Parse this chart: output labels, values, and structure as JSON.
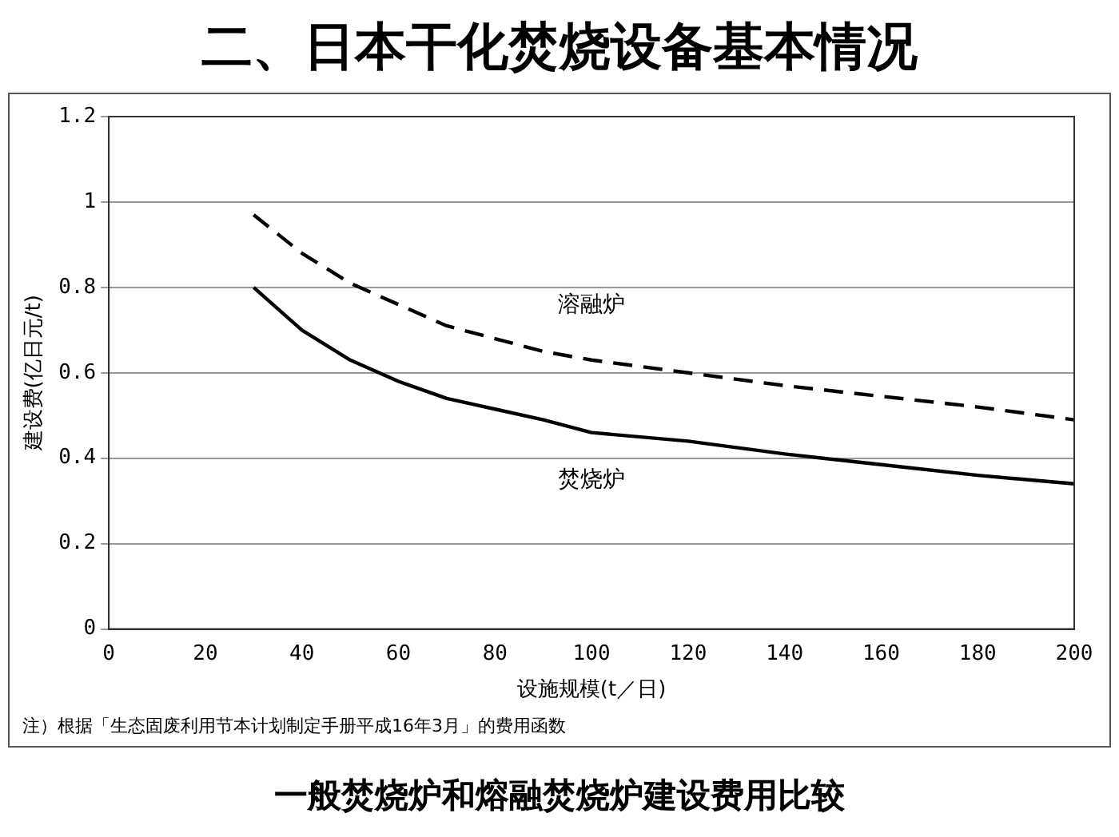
{
  "chart_data": {
    "type": "line",
    "title": "二、日本干化焚烧设备基本情况",
    "subtitle": "一般焚烧炉和熔融焚烧炉建设费用比较",
    "xlabel": "设施规模(t／日)",
    "ylabel": "建设费(亿日元/t)",
    "annotations": [
      "注）根据「生态固废利用节本计划制定手册平成16年3月」的费用函数"
    ],
    "xlim": [
      0,
      200
    ],
    "xticks": [
      0,
      20,
      40,
      60,
      80,
      100,
      120,
      140,
      160,
      180,
      200
    ],
    "ylim": [
      0,
      1.2
    ],
    "yticks": [
      0,
      0.2,
      0.4,
      0.6,
      0.8,
      1,
      1.2
    ],
    "grid": "y",
    "legend": false,
    "marker": "none",
    "series": [
      {
        "name": "溶融炉",
        "color": "#000000",
        "line_style": "dashed",
        "x": [
          30,
          40,
          50,
          60,
          70,
          80,
          90,
          100,
          110,
          120,
          140,
          160,
          180,
          200
        ],
        "values": [
          0.97,
          0.88,
          0.81,
          0.76,
          0.71,
          0.68,
          0.65,
          0.63,
          0.615,
          0.6,
          0.57,
          0.545,
          0.52,
          0.49
        ]
      },
      {
        "name": "焚烧炉",
        "color": "#000000",
        "line_style": "solid",
        "x": [
          30,
          40,
          50,
          60,
          70,
          80,
          90,
          100,
          120,
          140,
          160,
          180,
          200
        ],
        "values": [
          0.8,
          0.7,
          0.63,
          0.58,
          0.54,
          0.515,
          0.49,
          0.46,
          0.44,
          0.41,
          0.385,
          0.36,
          0.34
        ]
      }
    ]
  }
}
